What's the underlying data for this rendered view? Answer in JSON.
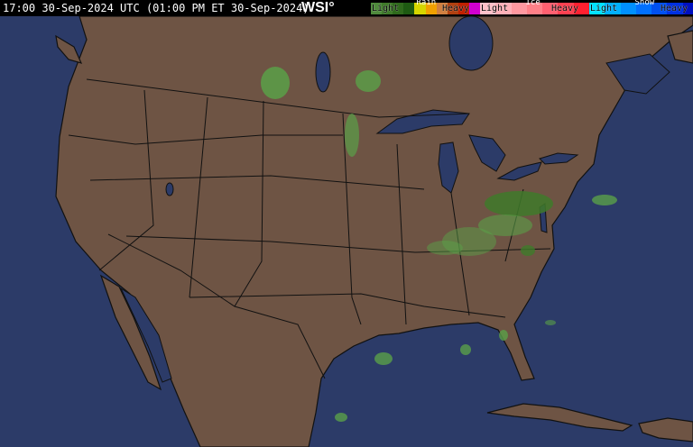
{
  "header": {
    "timestamp": "17:00 30-Sep-2024 UTC  (01:00 PM ET 30-Sep-2024)",
    "logo": "WSI°"
  },
  "legend": {
    "rain": {
      "label": "Rain",
      "light": "Light",
      "heavy": "Heavy",
      "colors": [
        "#4f8a3c",
        "#3f7a2a",
        "#2f6a1c",
        "#1e5a12",
        "#d6d600",
        "#f0a000",
        "#d08040",
        "#b04010",
        "#c02000",
        "#d000d0"
      ]
    },
    "ice": {
      "label": "Ice",
      "light": "Light",
      "heavy": "Heavy",
      "colors": [
        "#ffc0c8",
        "#ffb0b8",
        "#ff98a0",
        "#ff8088",
        "#ff6070",
        "#ff4050",
        "#ff2030"
      ]
    },
    "snow": {
      "label": "Snow",
      "light": "Light",
      "heavy": "Heavy",
      "colors": [
        "#00e0ff",
        "#00b0ff",
        "#0090ff",
        "#0070ff",
        "#0050f0",
        "#0030e0",
        "#0010c0"
      ]
    }
  },
  "map": {
    "land_color": "#6e5444",
    "water_color": "#2c3b68",
    "border_color": "#111111",
    "radar_light_rain": "#5aa048",
    "radar_mod_rain": "#3f7a2a"
  }
}
